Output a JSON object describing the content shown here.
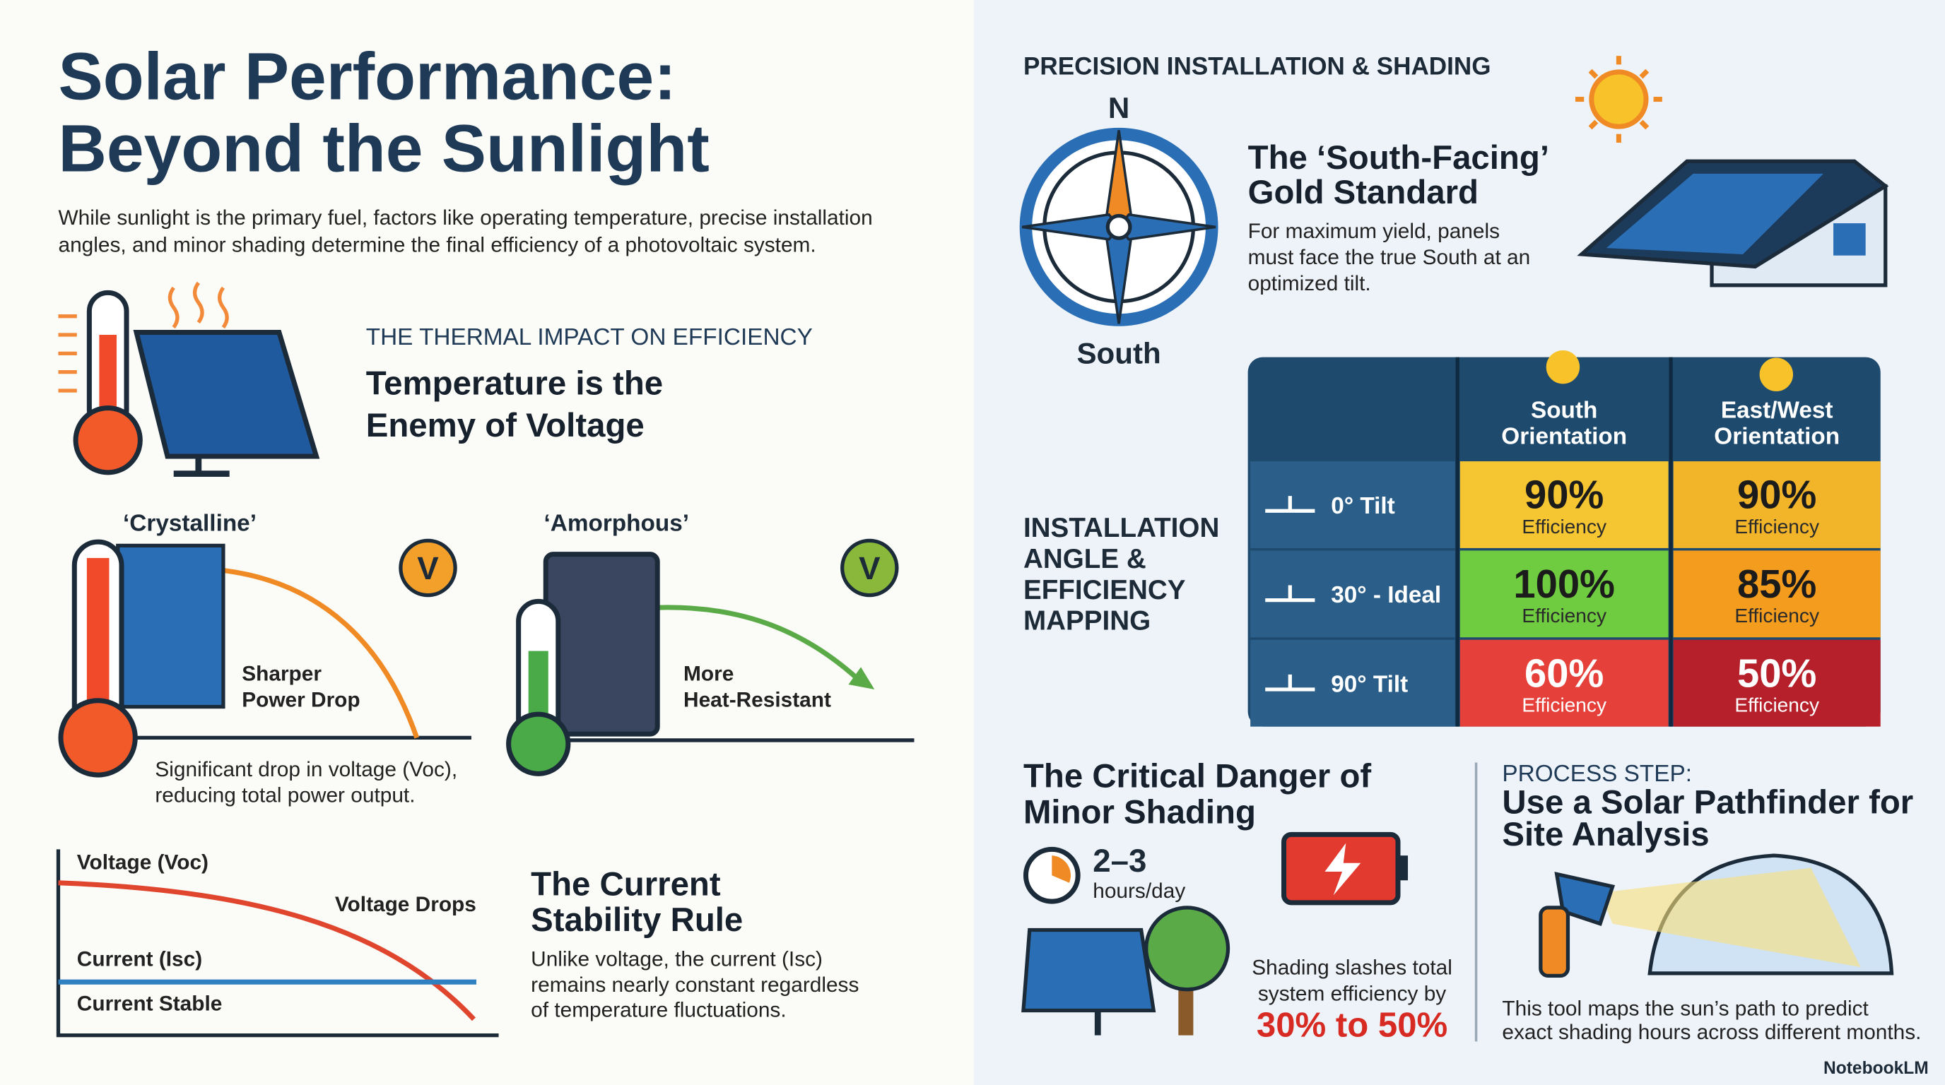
{
  "header": {
    "title_lines": [
      "Solar Performance:",
      "Beyond the Sunlight"
    ],
    "intro_lines": [
      "While sunlight is the primary fuel, factors like operating temperature, precise installation",
      "angles, and minor shading determine the final efficiency of a photovoltaic system."
    ]
  },
  "thermal": {
    "kicker": "THE THERMAL IMPACT ON EFFICIENCY",
    "heading_lines": [
      "Temperature is the",
      "Enemy of Voltage"
    ],
    "crystalline": {
      "label": "‘Crystalline’",
      "badge": "V",
      "note_lines": [
        "Sharper",
        "Power Drop"
      ]
    },
    "amorphous": {
      "label": "‘Amorphous’",
      "badge": "V",
      "note_lines": [
        "More",
        "Heat-Resistant"
      ]
    },
    "caption_lines": [
      "Significant drop in voltage (Voc),",
      "reducing total power output."
    ]
  },
  "current": {
    "graph": {
      "voltage_label": "Voltage (Voc)",
      "voltage_note": "Voltage Drops",
      "current_label": "Current (Isc)",
      "current_note": "Current Stable"
    },
    "heading_lines": [
      "The Current",
      "Stability Rule"
    ],
    "body_lines": [
      "Unlike voltage, the current (Isc)",
      "remains nearly constant regardless",
      "of temperature fluctuations."
    ]
  },
  "installation": {
    "kicker": "PRECISION INSTALLATION & SHADING",
    "compass": {
      "north": "N",
      "south": "South"
    },
    "heading_lines": [
      "The ‘South-Facing’",
      "Gold Standard"
    ],
    "body_lines": [
      "For maximum yield, panels",
      "must face the true South at an",
      "optimized tilt."
    ]
  },
  "mapping": {
    "label_lines": [
      "INSTALLATION",
      "ANGLE &",
      "EFFICIENCY",
      "MAPPING"
    ],
    "columns": [
      [
        "South",
        "Orientation"
      ],
      [
        "East/West",
        "Orientation"
      ]
    ],
    "rows": [
      {
        "tilt": "0° Tilt",
        "cells": [
          {
            "value": "90%",
            "label": "Efficiency"
          },
          {
            "value": "90%",
            "label": "Efficiency"
          }
        ]
      },
      {
        "tilt": "30° - Ideal",
        "cells": [
          {
            "value": "100%",
            "label": "Efficiency"
          },
          {
            "value": "85%",
            "label": "Efficiency"
          }
        ]
      },
      {
        "tilt": "90° Tilt",
        "cells": [
          {
            "value": "60%",
            "label": "Efficiency"
          },
          {
            "value": "50%",
            "label": "Efficiency"
          }
        ]
      }
    ]
  },
  "shading": {
    "heading_lines": [
      "The Critical Danger of",
      "Minor Shading"
    ],
    "hours": "2–3",
    "hours_unit": "hours/day",
    "body_lines": [
      "Shading slashes total",
      "system efficiency by"
    ],
    "range": "30% to 50%"
  },
  "pathfinder": {
    "kicker": "PROCESS STEP:",
    "heading_lines": [
      "Use a Solar Pathfinder for",
      "Site Analysis"
    ],
    "body_lines": [
      "This tool maps the sun’s path to predict",
      "exact shading hours across different months."
    ]
  },
  "footer": {
    "brand": "NotebookLM"
  }
}
